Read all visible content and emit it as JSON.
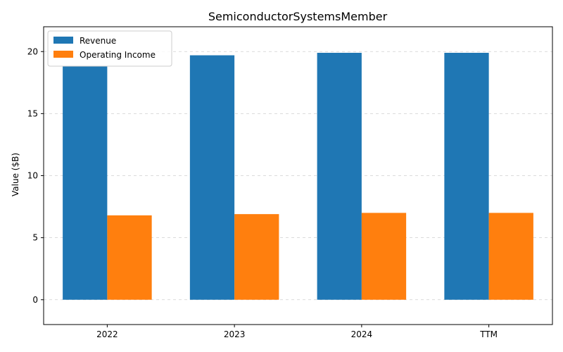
{
  "chart_data": {
    "type": "bar",
    "title": "SemiconductorSystemsMember",
    "xlabel": "",
    "ylabel": "Value ($B)",
    "categories": [
      "2022",
      "2023",
      "2024",
      "TTM"
    ],
    "series": [
      {
        "name": "Revenue",
        "color": "#1f77b4",
        "values": [
          18.8,
          19.7,
          19.9,
          19.9
        ]
      },
      {
        "name": "Operating Income",
        "color": "#ff7f0e",
        "values": [
          6.8,
          6.9,
          7.0,
          7.0
        ]
      }
    ],
    "ylim": [
      -2,
      22
    ],
    "yticks": [
      "0",
      "5",
      "10",
      "15",
      "20"
    ],
    "grid": "y-dashed",
    "legend_position": "top-left"
  }
}
